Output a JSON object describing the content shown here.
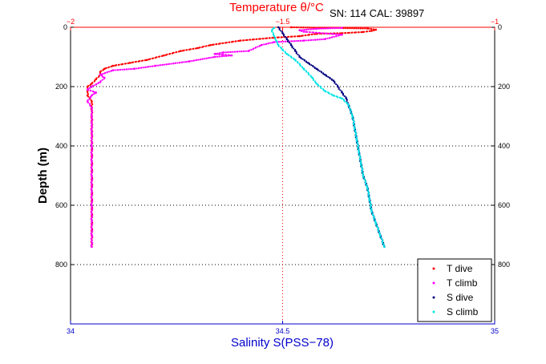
{
  "chart_data": {
    "type": "scatter",
    "title": "Temperature θ/°C",
    "annotation": "SN: 114  CAL: 39897",
    "xlabel": "Salinity S(PSS−78)",
    "ylabel": "Depth (m)",
    "x_top": {
      "label": "Temperature θ/°C",
      "lim": [
        -2,
        -1
      ],
      "ticks": [
        "−2",
        "−1.5",
        "−1"
      ],
      "tick_values": [
        -2,
        -1.5,
        -1
      ],
      "color": "#ff0000"
    },
    "x_bottom": {
      "label": "Salinity S(PSS−78)",
      "lim": [
        34,
        35
      ],
      "ticks": [
        "34",
        "34.5",
        "35"
      ],
      "tick_values": [
        34,
        34.5,
        35
      ],
      "color": "#0000cc"
    },
    "y": {
      "label": "Depth (m)",
      "lim": [
        0,
        1000
      ],
      "reversed": true,
      "ticks": [
        "0",
        "200",
        "400",
        "600",
        "800"
      ],
      "tick_values": [
        0,
        200,
        400,
        600,
        800
      ]
    },
    "grid": true,
    "legend_position": "bottom-right",
    "series": [
      {
        "name": "T dive",
        "axis": "top",
        "color": "#ff0000",
        "points": [
          [
            -1.48,
            0
          ],
          [
            -1.4,
            2
          ],
          [
            -1.3,
            4
          ],
          [
            -1.28,
            8
          ],
          [
            -1.29,
            12
          ],
          [
            -1.31,
            16
          ],
          [
            -1.36,
            20
          ],
          [
            -1.42,
            22
          ],
          [
            -1.46,
            30
          ],
          [
            -1.52,
            35
          ],
          [
            -1.6,
            45
          ],
          [
            -1.67,
            60
          ],
          [
            -1.7,
            70
          ],
          [
            -1.74,
            80
          ],
          [
            -1.78,
            95
          ],
          [
            -1.82,
            110
          ],
          [
            -1.86,
            120
          ],
          [
            -1.9,
            130
          ],
          [
            -1.92,
            140
          ],
          [
            -1.93,
            150
          ],
          [
            -1.93,
            160
          ],
          [
            -1.94,
            175
          ],
          [
            -1.95,
            190
          ],
          [
            -1.96,
            200
          ],
          [
            -1.96,
            215
          ],
          [
            -1.96,
            230
          ],
          [
            -1.95,
            250
          ],
          [
            -1.95,
            280
          ],
          [
            -1.95,
            320
          ],
          [
            -1.95,
            360
          ],
          [
            -1.95,
            400
          ],
          [
            -1.95,
            450
          ],
          [
            -1.95,
            500
          ],
          [
            -1.95,
            550
          ],
          [
            -1.95,
            600
          ],
          [
            -1.95,
            650
          ],
          [
            -1.95,
            700
          ],
          [
            -1.95,
            740
          ]
        ]
      },
      {
        "name": "T climb",
        "axis": "top",
        "color": "#ff00ff",
        "points": [
          [
            -1.95,
            740
          ],
          [
            -1.95,
            700
          ],
          [
            -1.95,
            650
          ],
          [
            -1.95,
            600
          ],
          [
            -1.95,
            550
          ],
          [
            -1.95,
            500
          ],
          [
            -1.95,
            450
          ],
          [
            -1.95,
            400
          ],
          [
            -1.95,
            350
          ],
          [
            -1.95,
            300
          ],
          [
            -1.95,
            270
          ],
          [
            -1.96,
            250
          ],
          [
            -1.95,
            230
          ],
          [
            -1.94,
            220
          ],
          [
            -1.96,
            210
          ],
          [
            -1.95,
            200
          ],
          [
            -1.93,
            185
          ],
          [
            -1.92,
            170
          ],
          [
            -1.93,
            160
          ],
          [
            -1.9,
            145
          ],
          [
            -1.85,
            140
          ],
          [
            -1.8,
            130
          ],
          [
            -1.72,
            115
          ],
          [
            -1.66,
            100
          ],
          [
            -1.62,
            95
          ],
          [
            -1.66,
            90
          ],
          [
            -1.64,
            85
          ],
          [
            -1.58,
            80
          ],
          [
            -1.55,
            60
          ],
          [
            -1.52,
            50
          ],
          [
            -1.45,
            45
          ],
          [
            -1.4,
            40
          ],
          [
            -1.36,
            25
          ],
          [
            -1.45,
            15
          ],
          [
            -1.46,
            10
          ],
          [
            -1.42,
            5
          ],
          [
            -1.36,
            2
          ]
        ]
      },
      {
        "name": "S dive",
        "axis": "bottom",
        "color": "#000080",
        "points": [
          [
            34.49,
            0
          ],
          [
            34.5,
            20
          ],
          [
            34.51,
            40
          ],
          [
            34.52,
            60
          ],
          [
            34.53,
            80
          ],
          [
            34.54,
            100
          ],
          [
            34.56,
            120
          ],
          [
            34.58,
            140
          ],
          [
            34.6,
            160
          ],
          [
            34.62,
            180
          ],
          [
            34.63,
            200
          ],
          [
            34.64,
            220
          ],
          [
            34.65,
            240
          ],
          [
            34.655,
            260
          ],
          [
            34.66,
            280
          ],
          [
            34.665,
            300
          ],
          [
            34.67,
            340
          ],
          [
            34.675,
            380
          ],
          [
            34.68,
            420
          ],
          [
            34.685,
            460
          ],
          [
            34.69,
            500
          ],
          [
            34.7,
            540
          ],
          [
            34.705,
            580
          ],
          [
            34.71,
            620
          ],
          [
            34.72,
            660
          ],
          [
            34.73,
            700
          ],
          [
            34.74,
            740
          ]
        ]
      },
      {
        "name": "S climb",
        "axis": "bottom",
        "color": "#00e5e5",
        "points": [
          [
            34.74,
            740
          ],
          [
            34.73,
            700
          ],
          [
            34.72,
            660
          ],
          [
            34.71,
            620
          ],
          [
            34.705,
            580
          ],
          [
            34.7,
            540
          ],
          [
            34.69,
            500
          ],
          [
            34.685,
            460
          ],
          [
            34.68,
            420
          ],
          [
            34.675,
            380
          ],
          [
            34.67,
            340
          ],
          [
            34.665,
            300
          ],
          [
            34.655,
            260
          ],
          [
            34.64,
            240
          ],
          [
            34.62,
            230
          ],
          [
            34.6,
            215
          ],
          [
            34.58,
            190
          ],
          [
            34.57,
            170
          ],
          [
            34.55,
            140
          ],
          [
            34.53,
            110
          ],
          [
            34.51,
            90
          ],
          [
            34.5,
            75
          ],
          [
            34.49,
            60
          ],
          [
            34.485,
            45
          ],
          [
            34.48,
            30
          ],
          [
            34.475,
            10
          ],
          [
            34.48,
            2
          ]
        ]
      }
    ]
  }
}
